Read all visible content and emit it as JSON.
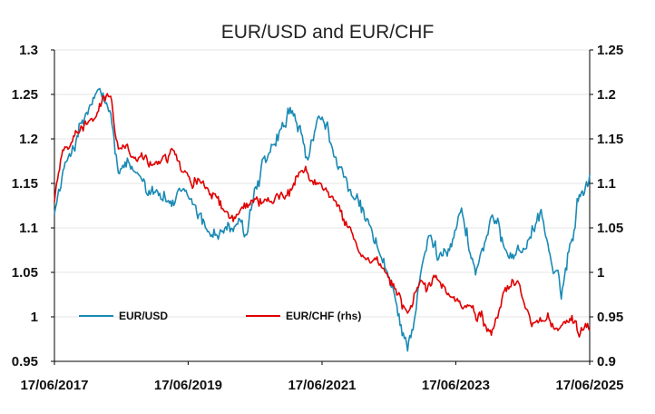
{
  "chart_data": {
    "type": "line",
    "title": "EUR/USD and EUR/CHF",
    "xlabel": "",
    "ylabel": "",
    "x_ticks": [
      "17/06/2017",
      "17/06/2019",
      "17/06/2021",
      "17/06/2023",
      "17/06/2025"
    ],
    "xlim": [
      "2017-06-17",
      "2025-06-17"
    ],
    "ylim_left": [
      0.95,
      1.3
    ],
    "ylim_right": [
      0.9,
      1.25
    ],
    "y_ticks_left": [
      "0.95",
      "1",
      "1.05",
      "1.1",
      "1.15",
      "1.2",
      "1.25",
      "1.3"
    ],
    "y_ticks_right": [
      "0.9",
      "0.95",
      "1",
      "1.05",
      "1.1",
      "1.15",
      "1.2",
      "1.25"
    ],
    "grid": true,
    "legend_position": "bottom-left",
    "colors": {
      "eurusd": "#1a8ab4",
      "eurchf": "#e00000",
      "grid": "#e6e6e6"
    },
    "series": [
      {
        "name": "EUR/USD",
        "axis": "left",
        "x": [
          "2017-06-17",
          "2017-09-01",
          "2018-02-01",
          "2018-04-15",
          "2018-06-01",
          "2018-09-01",
          "2019-01-01",
          "2019-03-01",
          "2019-06-17",
          "2019-10-01",
          "2020-03-01",
          "2020-05-01",
          "2020-06-01",
          "2020-09-01",
          "2020-12-01",
          "2021-01-06",
          "2021-03-31",
          "2021-05-25",
          "2021-09-01",
          "2021-12-01",
          "2022-03-01",
          "2022-06-01",
          "2022-09-27",
          "2022-12-01",
          "2023-01-26",
          "2023-03-15",
          "2023-07-18",
          "2023-10-03",
          "2023-12-28",
          "2024-04-16",
          "2024-07-01",
          "2024-09-25",
          "2024-12-01",
          "2025-01-13",
          "2025-03-01",
          "2025-04-21",
          "2025-06-17"
        ],
        "values": [
          1.12,
          1.18,
          1.25,
          1.23,
          1.16,
          1.16,
          1.145,
          1.13,
          1.13,
          1.095,
          1.1,
          1.09,
          1.125,
          1.18,
          1.21,
          1.23,
          1.175,
          1.22,
          1.18,
          1.13,
          1.1,
          1.05,
          0.965,
          1.04,
          1.09,
          1.065,
          1.12,
          1.05,
          1.11,
          1.07,
          1.08,
          1.12,
          1.05,
          1.02,
          1.08,
          1.14,
          1.16
        ]
      },
      {
        "name": "EUR/CHF (rhs)",
        "axis": "right",
        "x": [
          "2017-06-17",
          "2017-08-01",
          "2018-01-01",
          "2018-04-20",
          "2018-06-01",
          "2018-09-01",
          "2019-01-01",
          "2019-04-01",
          "2019-06-17",
          "2019-10-01",
          "2020-01-20",
          "2020-03-01",
          "2020-06-01",
          "2020-09-01",
          "2020-12-01",
          "2021-01-01",
          "2021-03-01",
          "2021-06-01",
          "2021-09-01",
          "2021-12-01",
          "2022-03-01",
          "2022-06-01",
          "2022-09-27",
          "2022-12-01",
          "2023-03-01",
          "2023-06-01",
          "2023-09-01",
          "2023-12-28",
          "2024-03-01",
          "2024-05-20",
          "2024-08-05",
          "2024-10-01",
          "2025-01-01",
          "2025-03-01",
          "2025-04-21",
          "2025-06-17"
        ],
        "values": [
          1.08,
          1.14,
          1.17,
          1.2,
          1.14,
          1.13,
          1.125,
          1.14,
          1.11,
          1.09,
          1.065,
          1.06,
          1.08,
          1.08,
          1.085,
          1.09,
          1.11,
          1.1,
          1.08,
          1.04,
          1.01,
          0.995,
          0.955,
          0.985,
          0.995,
          0.97,
          0.96,
          0.93,
          0.975,
          0.99,
          0.94,
          0.945,
          0.94,
          0.95,
          0.925,
          0.935
        ]
      }
    ]
  }
}
